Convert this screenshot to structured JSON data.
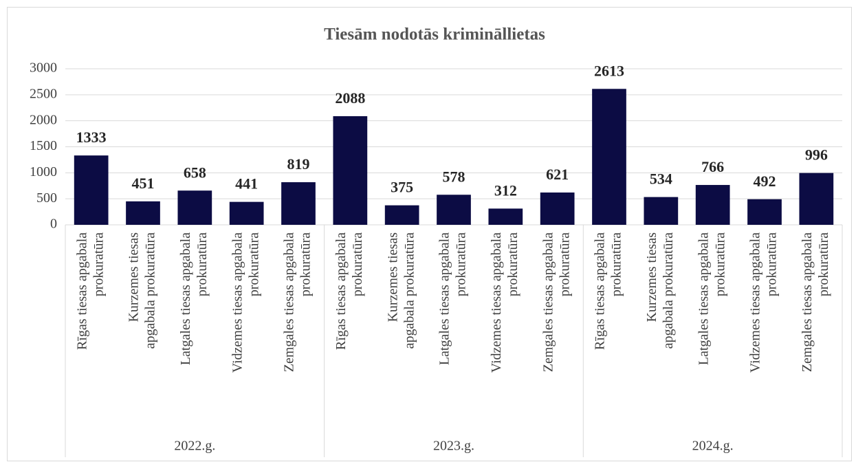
{
  "chart_data": {
    "type": "bar",
    "title": "Tiesām nodotās krimināllietas",
    "groups": [
      "2022.g.",
      "2023.g.",
      "2024.g."
    ],
    "categories": [
      [
        "Rīgas tiesas apgabala",
        "prokuratūra"
      ],
      [
        "Kurzemes tiesas",
        "apgabala prokuratūra"
      ],
      [
        "Latgales tiesas apgabala",
        "prokuratūra"
      ],
      [
        "Vidzemes tiesas apgabala",
        "prokuratūra"
      ],
      [
        "Zemgales tiesas apgabala",
        "prokuratūra"
      ],
      [
        "Rīgas tiesas apgabala",
        "prokuratūra"
      ],
      [
        "Kurzemes tiesas",
        "apgabala prokuratūra"
      ],
      [
        "Latgales tiesas apgabala",
        "prokuratūra"
      ],
      [
        "Vidzemes tiesas apgabala",
        "prokuratūra"
      ],
      [
        "Zemgales tiesas apgabala",
        "prokuratūra"
      ],
      [
        "Rīgas tiesas apgabala",
        "prokuratūra"
      ],
      [
        "Kurzemes tiesas",
        "apgabala prokuratūra"
      ],
      [
        "Latgales tiesas apgabala",
        "prokuratūra"
      ],
      [
        "Vidzemes tiesas apgabala",
        "prokuratūra"
      ],
      [
        "Zemgales tiesas apgabala",
        "prokuratūra"
      ]
    ],
    "values": [
      1333,
      451,
      658,
      441,
      819,
      2088,
      375,
      578,
      312,
      621,
      2613,
      534,
      766,
      492,
      996
    ],
    "color": "#0c0c44",
    "ylim": [
      0,
      3000
    ],
    "yticks": [
      0,
      500,
      1000,
      1500,
      2000,
      2500,
      3000
    ],
    "grid": true
  }
}
